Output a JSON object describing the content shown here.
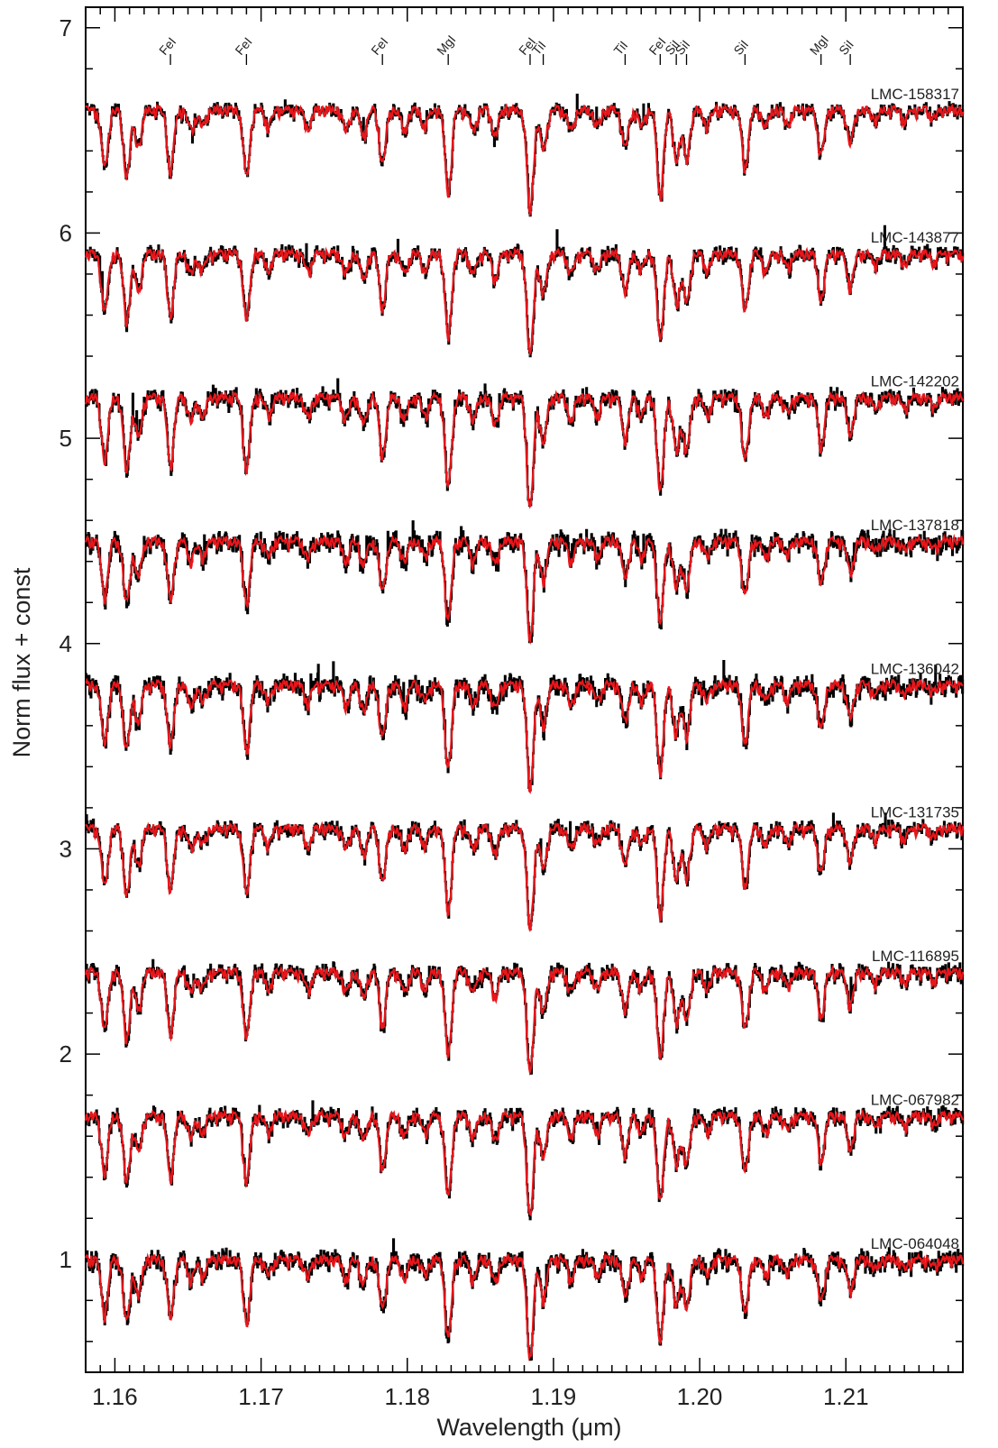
{
  "chart_data": {
    "type": "line",
    "xlabel": "Wavelength (μm)",
    "ylabel": "Norm flux + const",
    "xlim": [
      1.158,
      1.218
    ],
    "ylim": [
      0.45,
      7.1
    ],
    "x_ticks": [
      "1.16",
      "1.17",
      "1.18",
      "1.19",
      "1.20",
      "1.21"
    ],
    "y_ticks": [
      "1",
      "2",
      "3",
      "4",
      "5",
      "6",
      "7"
    ],
    "colors": {
      "observed": "#000000",
      "model": "#e8161b"
    },
    "line_ids": [
      {
        "label": "FeI",
        "wavelength": 1.1638
      },
      {
        "label": "FeI",
        "wavelength": 1.169
      },
      {
        "label": "FeI",
        "wavelength": 1.1783
      },
      {
        "label": "MgI",
        "wavelength": 1.1828
      },
      {
        "label": "FeI",
        "wavelength": 1.1884
      },
      {
        "label": "TiI",
        "wavelength": 1.1893
      },
      {
        "label": "TiI",
        "wavelength": 1.1949
      },
      {
        "label": "FeI",
        "wavelength": 1.1973
      },
      {
        "label": "SiI",
        "wavelength": 1.1984
      },
      {
        "label": "SiI",
        "wavelength": 1.1991
      },
      {
        "label": "SiI",
        "wavelength": 1.2031
      },
      {
        "label": "MgI",
        "wavelength": 1.2083
      },
      {
        "label": "SiI",
        "wavelength": 1.2103
      }
    ],
    "absorption_lines": [
      {
        "wavelength": 1.1593,
        "depth": 0.28
      },
      {
        "wavelength": 1.1608,
        "depth": 0.32
      },
      {
        "wavelength": 1.1616,
        "depth": 0.18
      },
      {
        "wavelength": 1.1638,
        "depth": 0.3
      },
      {
        "wavelength": 1.1652,
        "depth": 0.1
      },
      {
        "wavelength": 1.166,
        "depth": 0.08
      },
      {
        "wavelength": 1.169,
        "depth": 0.32
      },
      {
        "wavelength": 1.1705,
        "depth": 0.08
      },
      {
        "wavelength": 1.1732,
        "depth": 0.09
      },
      {
        "wavelength": 1.1758,
        "depth": 0.1
      },
      {
        "wavelength": 1.177,
        "depth": 0.12
      },
      {
        "wavelength": 1.1783,
        "depth": 0.26
      },
      {
        "wavelength": 1.1798,
        "depth": 0.1
      },
      {
        "wavelength": 1.1812,
        "depth": 0.08
      },
      {
        "wavelength": 1.1828,
        "depth": 0.4
      },
      {
        "wavelength": 1.1845,
        "depth": 0.1
      },
      {
        "wavelength": 1.186,
        "depth": 0.12
      },
      {
        "wavelength": 1.1884,
        "depth": 0.5
      },
      {
        "wavelength": 1.1893,
        "depth": 0.2
      },
      {
        "wavelength": 1.1912,
        "depth": 0.1
      },
      {
        "wavelength": 1.193,
        "depth": 0.08
      },
      {
        "wavelength": 1.1949,
        "depth": 0.18
      },
      {
        "wavelength": 1.196,
        "depth": 0.08
      },
      {
        "wavelength": 1.1973,
        "depth": 0.42
      },
      {
        "wavelength": 1.1984,
        "depth": 0.24
      },
      {
        "wavelength": 1.1991,
        "depth": 0.24
      },
      {
        "wavelength": 1.2005,
        "depth": 0.08
      },
      {
        "wavelength": 1.2031,
        "depth": 0.28
      },
      {
        "wavelength": 1.2045,
        "depth": 0.08
      },
      {
        "wavelength": 1.206,
        "depth": 0.07
      },
      {
        "wavelength": 1.2083,
        "depth": 0.22
      },
      {
        "wavelength": 1.2103,
        "depth": 0.16
      },
      {
        "wavelength": 1.212,
        "depth": 0.05
      },
      {
        "wavelength": 1.214,
        "depth": 0.05
      },
      {
        "wavelength": 1.216,
        "depth": 0.04
      }
    ],
    "series": [
      {
        "name": "LMC-158317",
        "offset": 6.6,
        "scale": 1.0,
        "noise": 0.02
      },
      {
        "name": "LMC-143877",
        "offset": 5.9,
        "scale": 1.0,
        "noise": 0.025
      },
      {
        "name": "LMC-142202",
        "offset": 5.2,
        "scale": 1.1,
        "noise": 0.03
      },
      {
        "name": "LMC-137818",
        "offset": 4.5,
        "scale": 0.95,
        "noise": 0.04
      },
      {
        "name": "LMC-136042",
        "offset": 3.8,
        "scale": 1.0,
        "noise": 0.04
      },
      {
        "name": "LMC-131735",
        "offset": 3.1,
        "scale": 1.0,
        "noise": 0.025
      },
      {
        "name": "LMC-116895",
        "offset": 2.4,
        "scale": 1.0,
        "noise": 0.03
      },
      {
        "name": "LMC-067982",
        "offset": 1.7,
        "scale": 1.0,
        "noise": 0.03
      },
      {
        "name": "LMC-064048",
        "offset": 1.0,
        "scale": 0.95,
        "noise": 0.035
      }
    ]
  }
}
